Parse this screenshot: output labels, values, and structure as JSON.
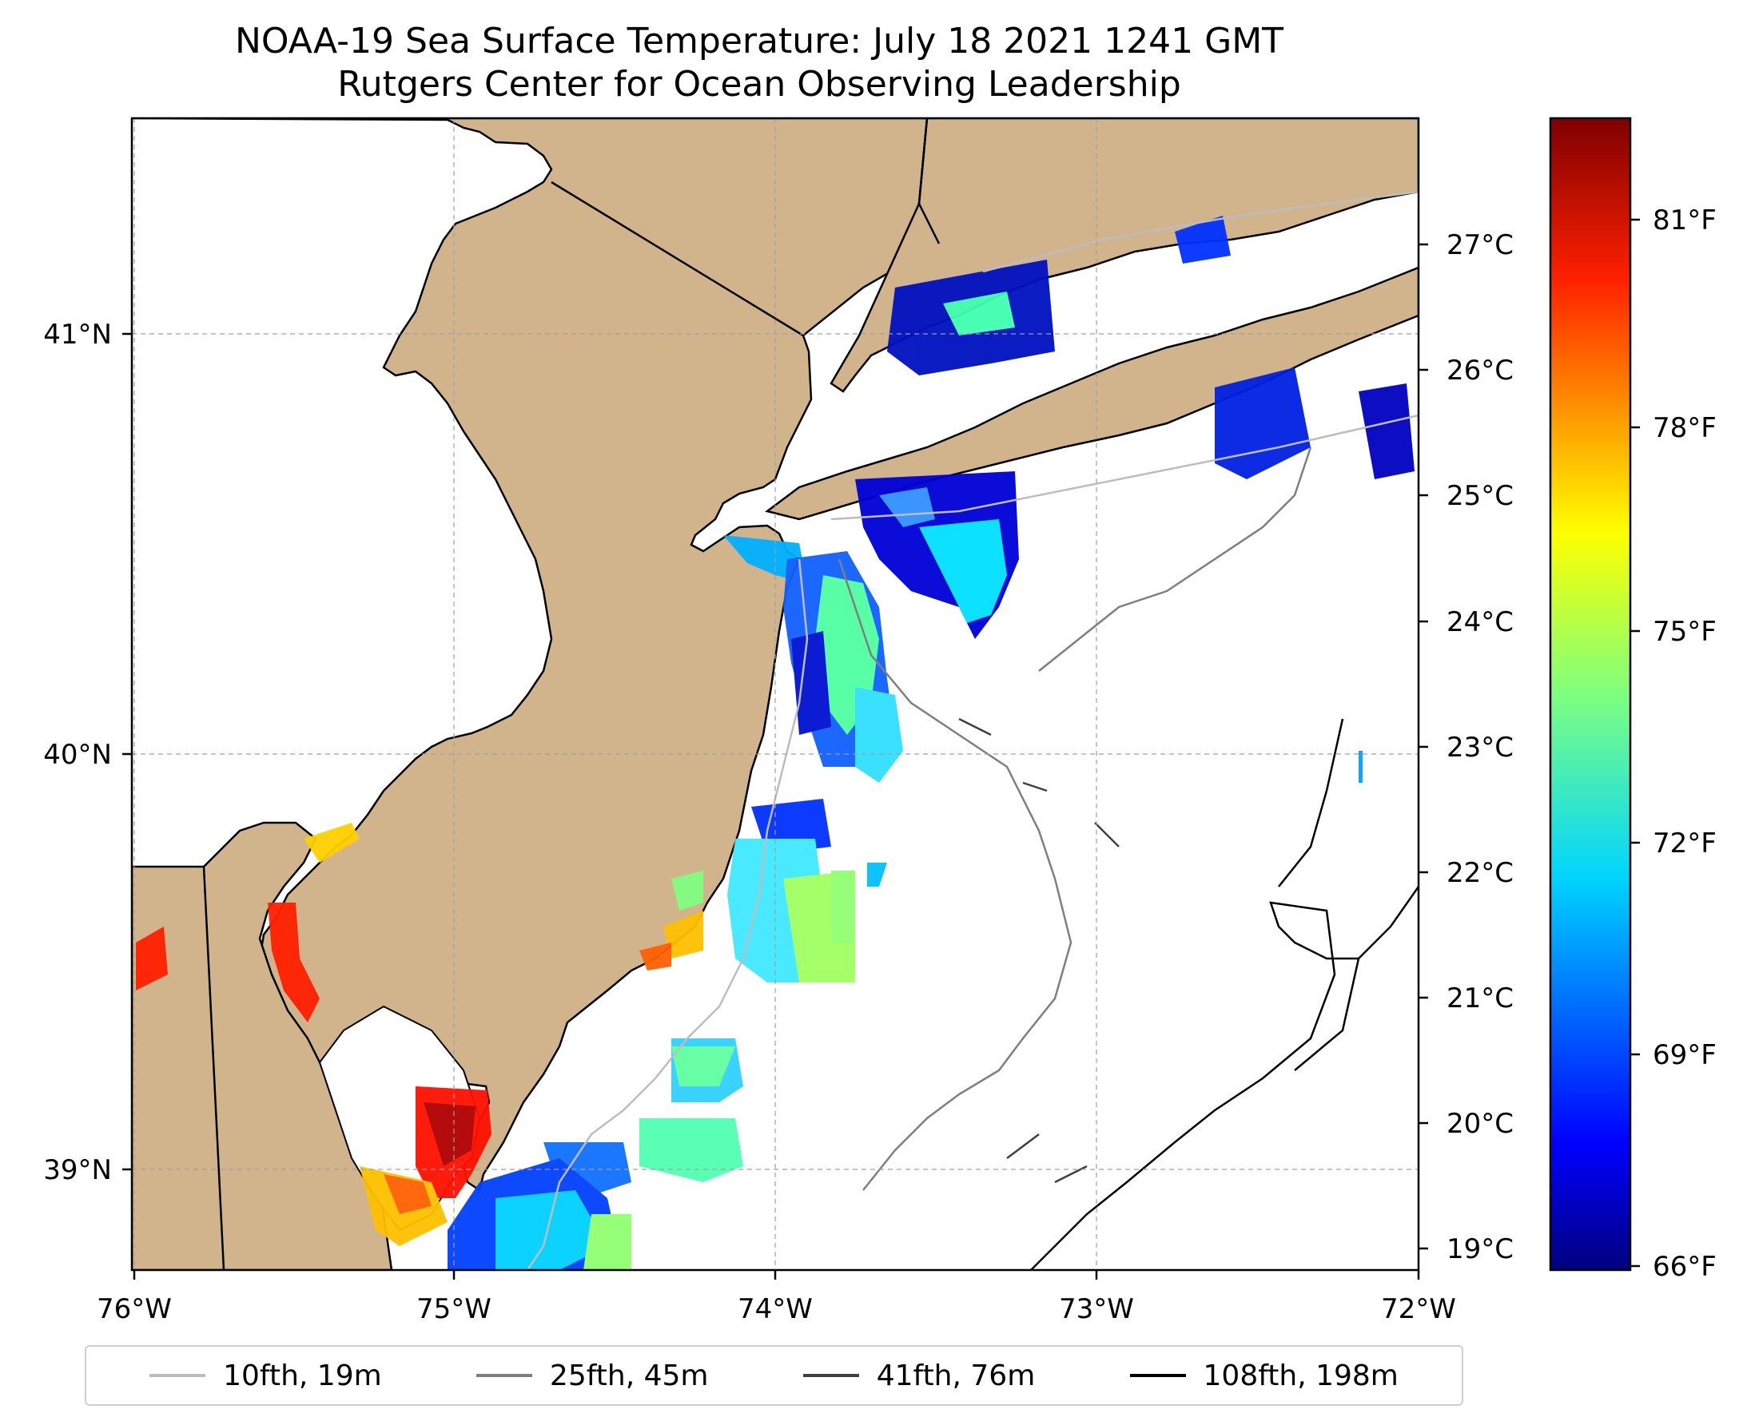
{
  "title": {
    "line1": "NOAA-19 Sea Surface Temperature: July 18 2021 1241 GMT",
    "line2": "Rutgers Center for Ocean Observing Leadership"
  },
  "map": {
    "lon_range": [
      -76.0,
      -72.0
    ],
    "lat_range": [
      38.75,
      41.55
    ],
    "x_ticks": [
      "76°W",
      "75°W",
      "74°W",
      "73°W",
      "72°W"
    ],
    "y_ticks": [
      "41°N",
      "40°N",
      "39°N"
    ],
    "land_color": "#d2b48c",
    "ocean_color": "#ffffff",
    "gridlines": true
  },
  "colorbar": {
    "colormap": "jet",
    "celsius_ticks": [
      "27°C",
      "26°C",
      "25°C",
      "24°C",
      "23°C",
      "22°C",
      "21°C",
      "20°C",
      "19°C"
    ],
    "fahrenheit_ticks": [
      "81°F",
      "78°F",
      "75°F",
      "72°F",
      "69°F",
      "66°F"
    ],
    "colors": [
      "#00007f",
      "#0000ff",
      "#007fff",
      "#00ffff",
      "#7fff7f",
      "#ffff00",
      "#ff7f00",
      "#ff0000",
      "#7f0000"
    ]
  },
  "legend": {
    "items": [
      {
        "label": "10fth, 19m",
        "color": "#bdbdbd"
      },
      {
        "label": "25fth, 45m",
        "color": "#7f7f7f"
      },
      {
        "label": "41fth, 76m",
        "color": "#404040"
      },
      {
        "label": "108fth, 198m",
        "color": "#000000"
      }
    ]
  }
}
